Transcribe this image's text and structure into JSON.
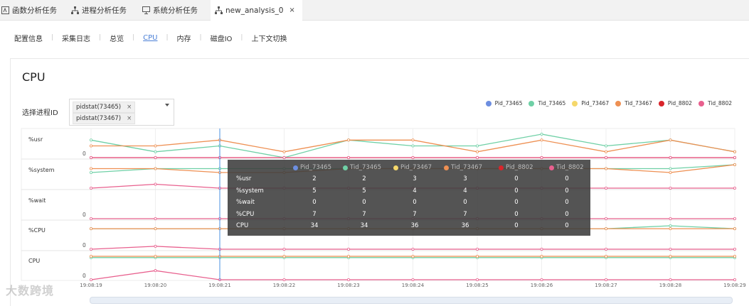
{
  "tabs": [
    {
      "label": "函数分析任务",
      "icon": "function-icon"
    },
    {
      "label": "进程分析任务",
      "icon": "tree-icon"
    },
    {
      "label": "系统分析任务",
      "icon": "monitor-icon"
    },
    {
      "label": "new_analysis_0",
      "icon": "tree-icon",
      "close": "×"
    }
  ],
  "subnav": [
    "配置信息",
    "采集日志",
    "总览",
    "CPU",
    "内存",
    "磁盘IO",
    "上下文切换"
  ],
  "subnav_active": "CPU",
  "title": "CPU",
  "select": {
    "label": "选择进程ID",
    "chips": [
      {
        "label": "pidstat(73465)",
        "x": "×"
      },
      {
        "label": "pidstat(73467)",
        "x": "×"
      }
    ]
  },
  "colors": {
    "Pid_73465": "#6d8ee0",
    "Tid_73465": "#6fd0a6",
    "Pid_73467": "#f5d86b",
    "Tid_73467": "#ee9053",
    "Pid_8802": "#d9252b",
    "Tid_8802": "#e8608e"
  },
  "chart_data": {
    "type": "line",
    "legend": [
      "Pid_73465",
      "Tid_73465",
      "Pid_73467",
      "Tid_73467",
      "Pid_8802",
      "Tid_8802"
    ],
    "x": [
      "19:08:19",
      "19:08:20",
      "19:08:21",
      "19:08:22",
      "19:08:23",
      "19:08:24",
      "19:08:25",
      "19:08:26",
      "19:08:27",
      "19:08:28",
      "19:08:29"
    ],
    "rows": [
      {
        "label": "%usr",
        "zero": "0",
        "series": {
          "Tid_73465": [
            3,
            1,
            2,
            0,
            3,
            2,
            2,
            4,
            2,
            3,
            1
          ],
          "Tid_73467": [
            2,
            2,
            3,
            1,
            3,
            3,
            1,
            3,
            1,
            3,
            1
          ],
          "Pid_8802": [
            0,
            0,
            0,
            0,
            0,
            0,
            0,
            0,
            0,
            0,
            0
          ],
          "Tid_8802": [
            0,
            0,
            0,
            0,
            0,
            0,
            0,
            0,
            0,
            0,
            0
          ]
        }
      },
      {
        "label": "%system",
        "zero": "",
        "series": {
          "Tid_73465": [
            4,
            5,
            5,
            5,
            5,
            5,
            5,
            5,
            5,
            5,
            6
          ],
          "Tid_73467": [
            5,
            5,
            4,
            4,
            5,
            5,
            5,
            5,
            5,
            4,
            6
          ],
          "Tid_8802": [
            0,
            1,
            0,
            0,
            0,
            0,
            0,
            0,
            0,
            0,
            0
          ]
        }
      },
      {
        "label": "%wait",
        "zero": "0",
        "series": {
          "Tid_8802": [
            0,
            0,
            0,
            0,
            0,
            0,
            0,
            0,
            0,
            0,
            0
          ]
        }
      },
      {
        "label": "%CPU",
        "zero": "0",
        "series": {
          "Tid_73465": [
            7,
            7,
            7,
            7,
            7,
            7,
            7,
            7,
            7,
            8,
            7
          ],
          "Tid_73467": [
            7,
            7,
            7,
            7,
            7,
            7,
            7,
            7,
            7,
            7,
            7
          ],
          "Tid_8802": [
            0,
            1,
            0,
            0,
            0,
            0,
            0,
            0,
            0,
            0,
            0
          ]
        }
      },
      {
        "label": "CPU",
        "zero": "0",
        "series": {
          "Tid_73465": [
            34,
            34,
            34,
            34,
            34,
            34,
            34,
            34,
            34,
            34,
            34
          ],
          "Tid_73467": [
            36,
            36,
            36,
            36,
            36,
            36,
            36,
            36,
            36,
            36,
            36
          ],
          "Tid_8802": [
            0,
            14,
            0,
            0,
            0,
            0,
            0,
            0,
            0,
            0,
            0
          ]
        }
      }
    ]
  },
  "tooltip": {
    "rows": [
      {
        "name": "%usr",
        "values": [
          "2",
          "2",
          "3",
          "3",
          "0",
          "0"
        ]
      },
      {
        "name": "%system",
        "values": [
          "5",
          "5",
          "4",
          "4",
          "0",
          "0"
        ]
      },
      {
        "name": "%wait",
        "values": [
          "0",
          "0",
          "0",
          "0",
          "0",
          "0"
        ]
      },
      {
        "name": "%CPU",
        "values": [
          "7",
          "7",
          "7",
          "7",
          "0",
          "0"
        ]
      },
      {
        "name": "CPU",
        "values": [
          "34",
          "34",
          "36",
          "36",
          "0",
          "0"
        ]
      }
    ]
  },
  "watermark": "大数跨境"
}
